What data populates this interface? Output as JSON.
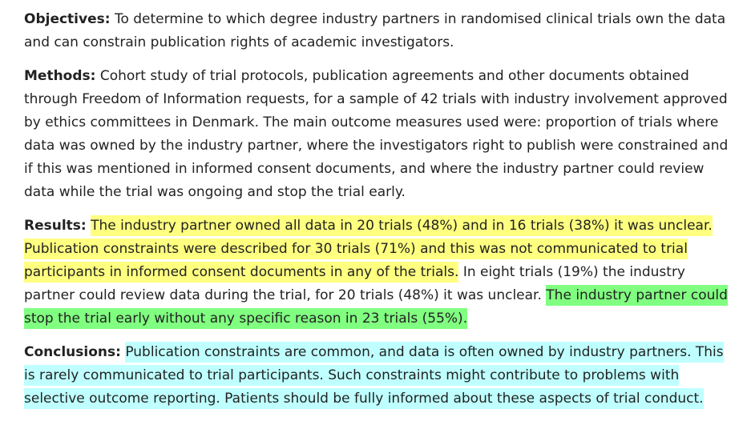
{
  "objectives": {
    "label": "Objectives:",
    "text": "To determine to which degree industry partners in randomised clinical trials own the data and can constrain publication rights of academic investigators."
  },
  "methods": {
    "label": "Methods:",
    "text": "Cohort study of trial protocols, publication agreements and other documents obtained through Freedom of Information requests, for a sample of 42 trials with industry involvement approved by ethics committees in Denmark. The main outcome measures used were: proportion of trials where data was owned by the industry partner, where the investigators right to publish were constrained and if this was mentioned in informed consent documents, and where the industry partner could review data while the trial was ongoing and stop the trial early."
  },
  "results": {
    "label": "Results:",
    "highlight_yellow": "The industry partner owned all data in 20 trials (48%) and in 16 trials (38%) it was unclear. Publication constraints were described for 30 trials (71%) and this was not communicated to trial participants in informed consent documents in any of the trials.",
    "plain": "In eight trials (19%) the industry partner could review data during the trial, for 20 trials (48%) it was unclear.",
    "highlight_green": "The industry partner could stop the trial early without any specific reason in 23 trials (55%)."
  },
  "conclusions": {
    "label": "Conclusions:",
    "highlight_cyan": "Publication constraints are common, and data is often owned by industry partners. This is rarely communicated to trial participants. Such constraints might contribute to problems with selective outcome reporting. Patients should be fully informed about these aspects of trial conduct."
  },
  "colors": {
    "highlight_yellow": "#ffff80",
    "highlight_green": "#80ff80",
    "highlight_cyan": "#bfffff",
    "text": "#222222"
  }
}
